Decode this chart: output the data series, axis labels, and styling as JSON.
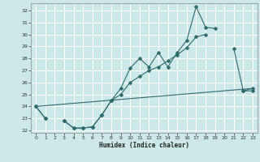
{
  "xlabel": "Humidex (Indice chaleur)",
  "ylabel": "",
  "bg_color": "#cce8e8",
  "grid_color": "#ffffff",
  "line_color": "#2d6b6b",
  "markersize": 2.5,
  "x": [
    0,
    1,
    2,
    3,
    4,
    5,
    6,
    7,
    8,
    9,
    10,
    11,
    12,
    13,
    14,
    15,
    16,
    17,
    18,
    19,
    20,
    21,
    22,
    23
  ],
  "line1_y": [
    24.0,
    23.0,
    null,
    22.8,
    22.2,
    22.2,
    22.3,
    23.3,
    24.5,
    25.5,
    27.2,
    28.0,
    27.3,
    28.5,
    27.3,
    28.5,
    29.5,
    32.3,
    30.6,
    30.5,
    null,
    28.8,
    25.3,
    25.3
  ],
  "line2_y": [
    24.0,
    23.0,
    null,
    22.8,
    22.2,
    22.2,
    22.3,
    23.3,
    24.5,
    25.0,
    26.0,
    26.5,
    27.0,
    27.3,
    27.8,
    28.3,
    28.9,
    29.8,
    30.0,
    null,
    null,
    null,
    25.3,
    25.5
  ],
  "line3_y": [
    24.0,
    null,
    null,
    null,
    null,
    null,
    null,
    null,
    null,
    null,
    null,
    null,
    null,
    null,
    null,
    null,
    null,
    null,
    null,
    null,
    null,
    null,
    null,
    25.5
  ],
  "ylim": [
    21.8,
    32.6
  ],
  "xlim": [
    -0.5,
    23.5
  ],
  "yticks": [
    22,
    23,
    24,
    25,
    26,
    27,
    28,
    29,
    30,
    31,
    32
  ],
  "xticks": [
    0,
    1,
    2,
    3,
    4,
    5,
    6,
    7,
    8,
    9,
    10,
    11,
    12,
    13,
    14,
    15,
    16,
    17,
    18,
    19,
    20,
    21,
    22,
    23
  ]
}
